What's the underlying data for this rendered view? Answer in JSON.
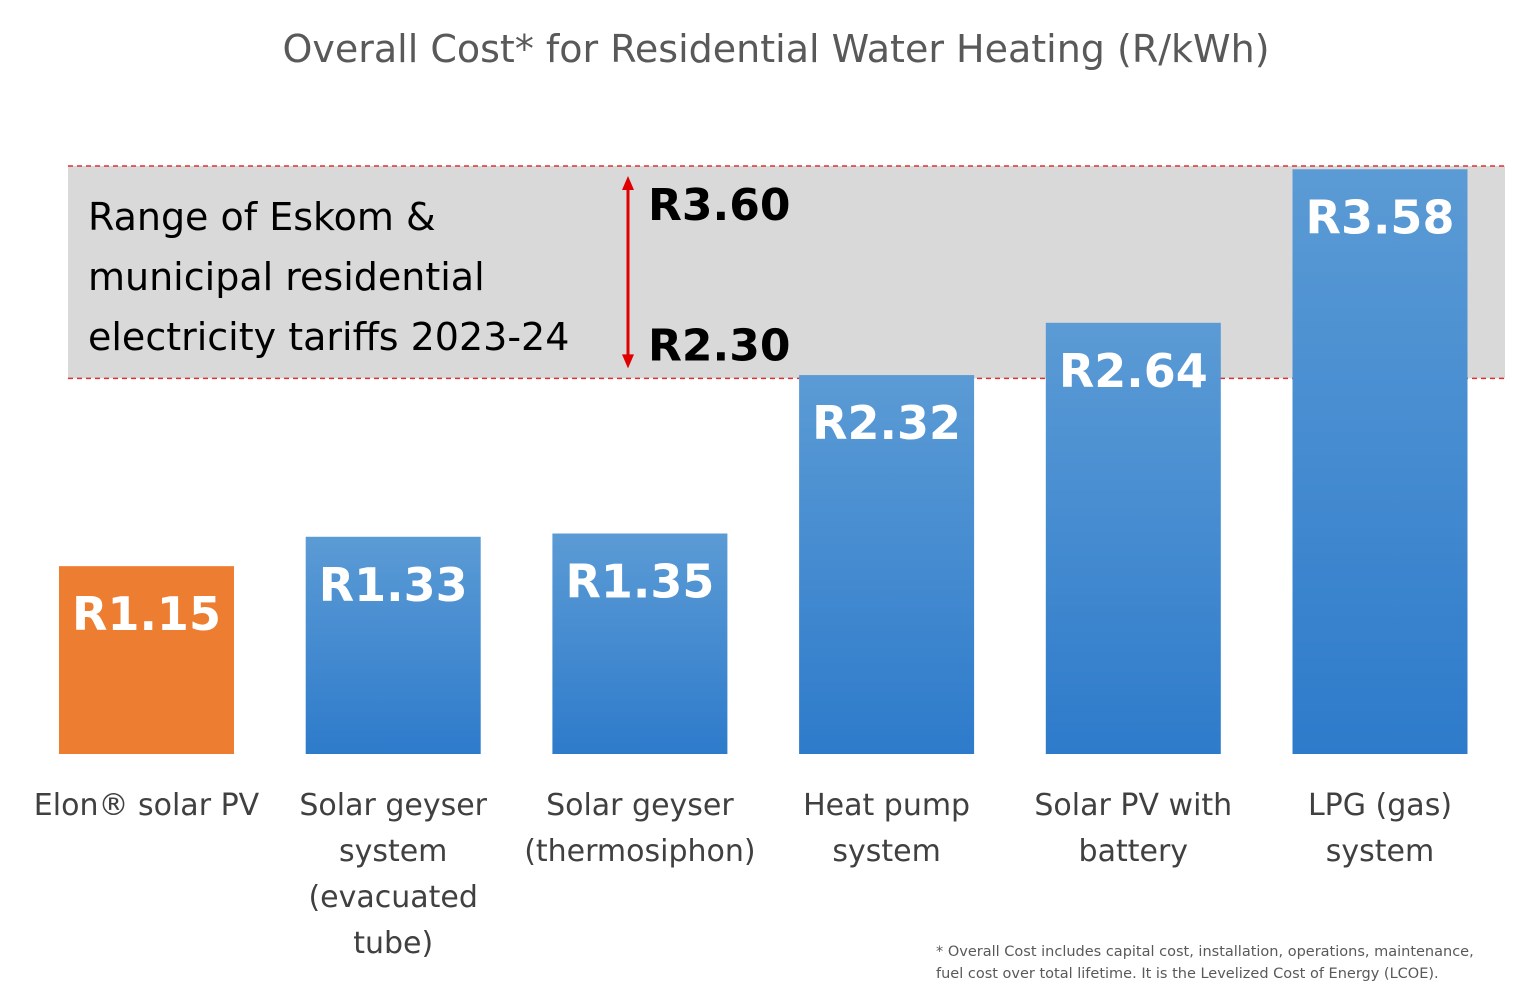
{
  "chart_data": {
    "type": "bar",
    "title": "Overall Cost* for Residential Water Heating (R/kWh)",
    "categories": [
      "Elon® solar PV",
      "Solar geyser system (evacuated tube)",
      "Solar geyser (thermosiphon)",
      "Heat pump system",
      "Solar PV with battery",
      "LPG (gas) system"
    ],
    "category_lines": [
      [
        "Elon® solar PV"
      ],
      [
        "Solar geyser",
        "system",
        "(evacuated",
        "tube)"
      ],
      [
        "Solar geyser",
        "(thermosiphon)"
      ],
      [
        "Heat pump",
        "system"
      ],
      [
        "Solar PV with",
        "battery"
      ],
      [
        "LPG (gas)",
        "system"
      ]
    ],
    "values": [
      1.15,
      1.33,
      1.35,
      2.32,
      2.64,
      3.58
    ],
    "value_labels": [
      "R1.15",
      "R1.33",
      "R1.35",
      "R2.32",
      "R2.64",
      "R3.58"
    ],
    "bar_colors": [
      "#ED7D31",
      "#5B9BD5",
      "#5B9BD5",
      "#5B9BD5",
      "#5B9BD5",
      "#5B9BD5"
    ],
    "highlight_color": "#ED7D31",
    "series_color_top": "#5B9BD5",
    "series_color_bottom": "#2E7BCB",
    "ylim": [
      0,
      3.6
    ],
    "grid": false,
    "legend": "none",
    "xlabel": "",
    "ylabel": "",
    "tariff_band": {
      "low": 2.3,
      "high": 3.6,
      "low_label": "R2.30",
      "high_label": "R3.60",
      "text_lines": [
        "Range of Eskom &",
        "municipal residential",
        "electricity tariffs 2023-24"
      ],
      "fill_color": "#D9D9D9",
      "line_color": "#E03030",
      "arrow_color": "#E00000"
    },
    "footnote_lines": [
      "* Overall Cost includes capital cost, installation, operations, maintenance,",
      "fuel cost over total lifetime.  It is the Levelized Cost of Energy (LCOE)."
    ]
  }
}
